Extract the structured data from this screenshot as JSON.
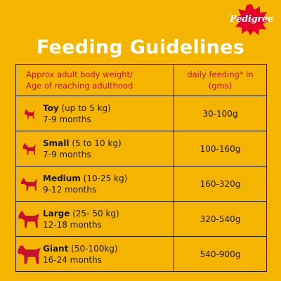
{
  "brand": {
    "logo_text": "Pedigree",
    "logo_color": "#e4002b"
  },
  "title": "Feeding Guidelines",
  "table": {
    "header_left_line1": "Approx adult body weight/",
    "header_left_line2": "Age of reaching adulthood",
    "header_right_line1": "daily feeding* in",
    "header_right_line2": "(gms)",
    "rows": [
      {
        "size": "Toy",
        "weight": "(up to 5 kg)",
        "age": "7-9 months",
        "amount": "30-100g",
        "icon": "toy-dog-icon"
      },
      {
        "size": "Small",
        "weight": "(5 to 10 kg)",
        "age": "7-9 months",
        "amount": "100-160g",
        "icon": "small-dog-icon"
      },
      {
        "size": "Medium",
        "weight": "(10-25 kg)",
        "age": "9-12 months",
        "amount": "160-320g",
        "icon": "medium-dog-icon"
      },
      {
        "size": "Large",
        "weight": "(25- 50 kg)",
        "age": "12-18 months",
        "amount": "320-540g",
        "icon": "large-dog-icon"
      },
      {
        "size": "Giant",
        "weight": "(50-100kg)",
        "age": "16-24 months",
        "amount": "540-900g",
        "icon": "giant-dog-icon"
      }
    ]
  },
  "colors": {
    "background": "#f5b400",
    "header_text": "#c8102e",
    "dog_icon": "#c8102e"
  }
}
